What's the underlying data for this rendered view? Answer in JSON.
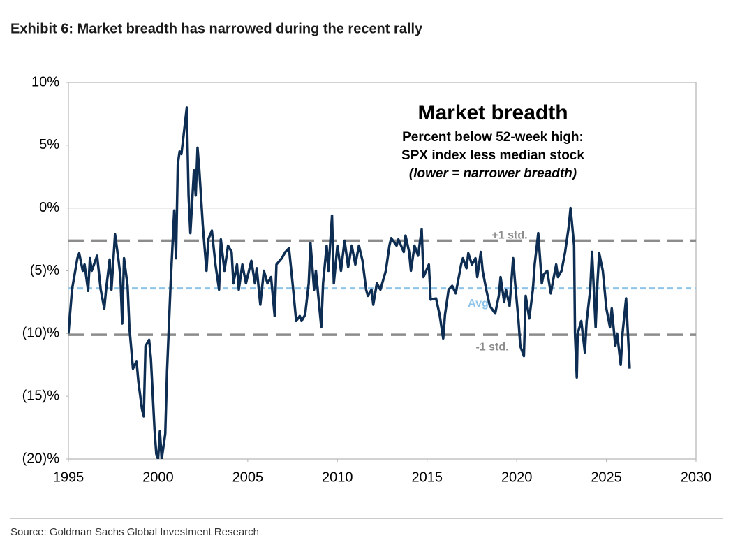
{
  "chart_data": {
    "type": "line",
    "title": "Exhibit 6: Market breadth has narrowed during the recent rally",
    "annotation_title": "Market breadth",
    "annotation_lines": [
      "Percent below 52-week high:",
      "SPX index less median stock",
      "(lower = narrower breadth)"
    ],
    "source": "Source: Goldman Sachs Global Investment Research",
    "color": "#0d2d52",
    "zero_line": true,
    "xlim": [
      1995,
      2030
    ],
    "xticks": [
      1995,
      2000,
      2005,
      2010,
      2015,
      2020,
      2025,
      2030
    ],
    "ylim": [
      -20,
      10
    ],
    "yticks": [
      {
        "value": 10,
        "label": "10%"
      },
      {
        "value": 5,
        "label": "5%"
      },
      {
        "value": 0,
        "label": "0%"
      },
      {
        "value": -5,
        "label": "(5)%"
      },
      {
        "value": -10,
        "label": "(10)%"
      },
      {
        "value": -15,
        "label": "(15)%"
      },
      {
        "value": -20,
        "label": "(20)%"
      }
    ],
    "reference_lines": [
      {
        "label": "+1 std.",
        "value": -2.6,
        "color": "#8c8c8c"
      },
      {
        "label": "Avg",
        "value": -6.4,
        "color": "#8fc4ea"
      },
      {
        "label": "-1 std.",
        "value": -10.1,
        "color": "#8c8c8c"
      }
    ],
    "x": [
      1995.0,
      1995.2,
      1995.5,
      1995.6,
      1995.8,
      1995.9,
      1996.1,
      1996.2,
      1996.3,
      1996.6,
      1996.8,
      1997.0,
      1997.1,
      1997.3,
      1997.4,
      1997.6,
      1997.8,
      1997.9,
      1998.0,
      1998.1,
      1998.3,
      1998.4,
      1998.6,
      1998.8,
      1998.9,
      1999.1,
      1999.2,
      1999.3,
      1999.5,
      1999.6,
      1999.8,
      1999.9,
      2000.0,
      2000.1,
      2000.2,
      2000.4,
      2000.5,
      2000.7,
      2000.9,
      2001.0,
      2001.1,
      2001.2,
      2001.3,
      2001.4,
      2001.6,
      2001.7,
      2001.8,
      2002.0,
      2002.1,
      2002.2,
      2002.3,
      2002.5,
      2002.7,
      2002.8,
      2003.0,
      2003.2,
      2003.4,
      2003.5,
      2003.7,
      2003.9,
      2004.1,
      2004.2,
      2004.4,
      2004.5,
      2004.7,
      2004.9,
      2005.2,
      2005.4,
      2005.5,
      2005.7,
      2005.9,
      2006.1,
      2006.3,
      2006.5,
      2006.6,
      2006.9,
      2007.1,
      2007.3,
      2007.5,
      2007.7,
      2007.9,
      2008.0,
      2008.2,
      2008.4,
      2008.5,
      2008.7,
      2008.8,
      2009.1,
      2009.2,
      2009.4,
      2009.5,
      2009.7,
      2009.8,
      2010.0,
      2010.2,
      2010.4,
      2010.6,
      2010.8,
      2011.0,
      2011.2,
      2011.4,
      2011.6,
      2011.7,
      2011.9,
      2012.0,
      2012.2,
      2012.4,
      2012.7,
      2012.9,
      2013.0,
      2013.3,
      2013.4,
      2013.7,
      2013.8,
      2014.0,
      2014.1,
      2014.3,
      2014.5,
      2014.7,
      2014.8,
      2015.1,
      2015.2,
      2015.5,
      2015.7,
      2015.9,
      2016.0,
      2016.2,
      2016.4,
      2016.6,
      2016.9,
      2017.0,
      2017.2,
      2017.3,
      2017.5,
      2017.7,
      2017.8,
      2018.0,
      2018.1,
      2018.3,
      2018.5,
      2018.8,
      2019.0,
      2019.1,
      2019.3,
      2019.4,
      2019.6,
      2019.8,
      2019.9,
      2020.1,
      2020.2,
      2020.4,
      2020.5,
      2020.7,
      2020.9,
      2021.0,
      2021.2,
      2021.4,
      2021.5,
      2021.7,
      2021.9,
      2022.0,
      2022.2,
      2022.3,
      2022.5,
      2022.7,
      2022.9,
      2023.0,
      2023.1,
      2023.2,
      2023.25,
      2023.35,
      2023.4,
      2023.6,
      2023.8,
      2023.9,
      2024.1,
      2024.2,
      2024.4,
      2024.5,
      2024.6,
      2024.8,
      2025.0,
      2025.2,
      2025.3,
      2025.5,
      2025.6,
      2025.8,
      2025.9,
      2026.1,
      2026.3
    ],
    "values": [
      -10,
      -6.5,
      -4,
      -3.6,
      -5,
      -4.5,
      -6.6,
      -4,
      -5,
      -3.8,
      -6.5,
      -8,
      -6.5,
      -4.1,
      -6.5,
      -2.1,
      -4.2,
      -5.5,
      -9.2,
      -4,
      -6.2,
      -9.5,
      -12.8,
      -12.2,
      -13.8,
      -16,
      -16.6,
      -11,
      -10.5,
      -12,
      -17.6,
      -19.6,
      -20,
      -17.8,
      -20,
      -18,
      -13,
      -6,
      -0.2,
      -4,
      3.5,
      4.5,
      4.3,
      5.5,
      8,
      1,
      -2,
      3,
      1,
      4.8,
      3,
      -1.5,
      -5,
      -2.5,
      -1.8,
      -4.5,
      -6.5,
      -2.5,
      -5,
      -3,
      -3.5,
      -6,
      -4.5,
      -6.5,
      -4.5,
      -6,
      -4.2,
      -6,
      -4.8,
      -7.7,
      -5,
      -6,
      -5.5,
      -8.6,
      -4.5,
      -4,
      -3.5,
      -3.2,
      -6,
      -9,
      -8.6,
      -9,
      -8.5,
      -6,
      -2.8,
      -6.5,
      -5,
      -9.5,
      -6,
      -3,
      -5,
      -0.6,
      -6,
      -3,
      -5,
      -2.6,
      -4.7,
      -3,
      -4.5,
      -3,
      -4.2,
      -6.5,
      -7,
      -6.5,
      -7.7,
      -6,
      -6.5,
      -5,
      -3,
      -2.4,
      -3,
      -2.5,
      -3.5,
      -2.2,
      -3.5,
      -5,
      -3,
      -3.8,
      -1.7,
      -5.5,
      -4.5,
      -7.3,
      -7.2,
      -8.5,
      -10.4,
      -8.5,
      -6.5,
      -6.2,
      -6.8,
      -4.5,
      -4,
      -4.8,
      -3.6,
      -4.5,
      -4,
      -5.5,
      -3.5,
      -5,
      -6.5,
      -7.8,
      -8.4,
      -7,
      -5.5,
      -7.5,
      -6.5,
      -7.8,
      -4,
      -5.8,
      -9,
      -11,
      -11.8,
      -7,
      -8.8,
      -6.5,
      -4.5,
      -2,
      -6,
      -5.3,
      -5,
      -6.8,
      -6,
      -4.5,
      -5.5,
      -5,
      -3.5,
      -1.5,
      0,
      -1.5,
      -3,
      -10,
      -13.5,
      -10,
      -9,
      -11.5,
      -9,
      -6.5,
      -3.5,
      -9.5,
      -6,
      -3.6,
      -5,
      -8,
      -9.5,
      -8,
      -11,
      -10,
      -12.5,
      -10,
      -7.2,
      -12.8
    ]
  }
}
